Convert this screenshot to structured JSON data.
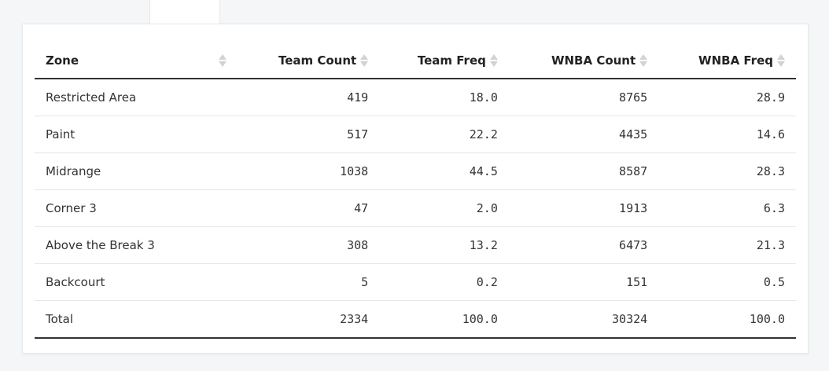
{
  "table": {
    "columns": [
      {
        "label": "Zone",
        "align": "left"
      },
      {
        "label": "Team Count",
        "align": "right"
      },
      {
        "label": "Team Freq",
        "align": "right"
      },
      {
        "label": "WNBA Count",
        "align": "right"
      },
      {
        "label": "WNBA Freq",
        "align": "right"
      }
    ],
    "rows": [
      {
        "zone": "Restricted Area",
        "team_count": "419",
        "team_freq": "18.0",
        "wnba_count": "8765",
        "wnba_freq": "28.9"
      },
      {
        "zone": "Paint",
        "team_count": "517",
        "team_freq": "22.2",
        "wnba_count": "4435",
        "wnba_freq": "14.6"
      },
      {
        "zone": "Midrange",
        "team_count": "1038",
        "team_freq": "44.5",
        "wnba_count": "8587",
        "wnba_freq": "28.3"
      },
      {
        "zone": "Corner 3",
        "team_count": "47",
        "team_freq": "2.0",
        "wnba_count": "1913",
        "wnba_freq": "6.3"
      },
      {
        "zone": "Above the Break 3",
        "team_count": "308",
        "team_freq": "13.2",
        "wnba_count": "6473",
        "wnba_freq": "21.3"
      },
      {
        "zone": "Backcourt",
        "team_count": "5",
        "team_freq": "0.2",
        "wnba_count": "151",
        "wnba_freq": "0.5"
      },
      {
        "zone": "Total",
        "team_count": "2334",
        "team_freq": "100.0",
        "wnba_count": "30324",
        "wnba_freq": "100.0"
      }
    ]
  },
  "icons": {
    "sort": "sort-both-icon"
  },
  "colors": {
    "header_rule": "#333333",
    "row_divider": "#e3e6e8",
    "sort_icon": "#cfd3d6"
  }
}
